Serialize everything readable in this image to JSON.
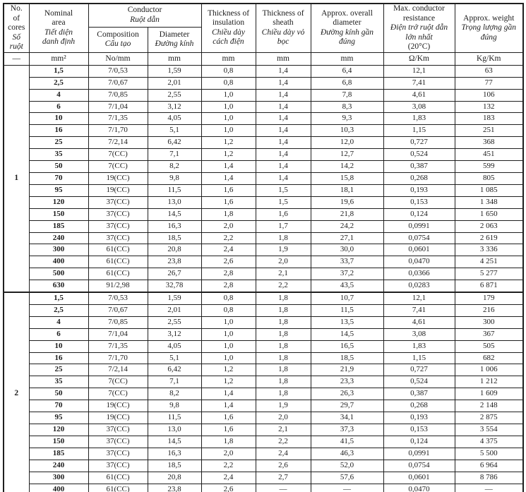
{
  "colors": {
    "border": "#1f1f1f",
    "text": "#1c1c1c",
    "background": "#ffffff"
  },
  "table": {
    "header": {
      "cores": {
        "en": "No.\nof\ncores",
        "vi": "Số\nruột"
      },
      "nominal_area": {
        "en": "Nominal\narea",
        "vi": "Tiết diện\ndanh định"
      },
      "conductor": {
        "en": "Conductor",
        "vi": "Ruột dẫn"
      },
      "composition": {
        "en": "Composition",
        "vi": "Cấu tạo"
      },
      "diameter": {
        "en": "Diameter",
        "vi": "Đường kính"
      },
      "insulation": {
        "en": "Thickness of\ninsulation",
        "vi": "Chiều dày\ncách điện"
      },
      "sheath": {
        "en": "Thickness of\nsheath",
        "vi": "Chiều dày vỏ\nbọc"
      },
      "overall_diameter": {
        "en": "Approx. overall\ndiameter",
        "vi": "Đường kính gần\nđúng"
      },
      "resistance": {
        "en": "Max. conductor\nresistance",
        "vi": "Điện trở ruột dẫn\nlớn nhất",
        "note": "(20°C)"
      },
      "weight": {
        "en": "Approx. weight",
        "vi": "Trọng lượng gần\nđúng"
      }
    },
    "units": [
      "—",
      "mm²",
      "No/mm",
      "mm",
      "mm",
      "mm",
      "mm",
      "Ω/Km",
      "Kg/Km"
    ],
    "sections": [
      {
        "cores": "1",
        "rows": [
          [
            "1,5",
            "7/0,53",
            "1,59",
            "0,8",
            "1,4",
            "6,4",
            "12,1",
            "63"
          ],
          [
            "2,5",
            "7/0,67",
            "2,01",
            "0,8",
            "1,4",
            "6,8",
            "7,41",
            "77"
          ],
          [
            "4",
            "7/0,85",
            "2,55",
            "1,0",
            "1,4",
            "7,8",
            "4,61",
            "106"
          ],
          [
            "6",
            "7/1,04",
            "3,12",
            "1,0",
            "1,4",
            "8,3",
            "3,08",
            "132"
          ],
          [
            "10",
            "7/1,35",
            "4,05",
            "1,0",
            "1,4",
            "9,3",
            "1,83",
            "183"
          ],
          [
            "16",
            "7/1,70",
            "5,1",
            "1,0",
            "1,4",
            "10,3",
            "1,15",
            "251"
          ],
          [
            "25",
            "7/2,14",
            "6,42",
            "1,2",
            "1,4",
            "12,0",
            "0,727",
            "368"
          ],
          [
            "35",
            "7(CC)",
            "7,1",
            "1,2",
            "1,4",
            "12,7",
            "0,524",
            "451"
          ],
          [
            "50",
            "7(CC)",
            "8,2",
            "1,4",
            "1,4",
            "14,2",
            "0,387",
            "599"
          ],
          [
            "70",
            "19(CC)",
            "9,8",
            "1,4",
            "1,4",
            "15,8",
            "0,268",
            "805"
          ],
          [
            "95",
            "19(CC)",
            "11,5",
            "1,6",
            "1,5",
            "18,1",
            "0,193",
            "1 085"
          ],
          [
            "120",
            "37(CC)",
            "13,0",
            "1,6",
            "1,5",
            "19,6",
            "0,153",
            "1 348"
          ],
          [
            "150",
            "37(CC)",
            "14,5",
            "1,8",
            "1,6",
            "21,8",
            "0,124",
            "1 650"
          ],
          [
            "185",
            "37(CC)",
            "16,3",
            "2,0",
            "1,7",
            "24,2",
            "0,0991",
            "2 063"
          ],
          [
            "240",
            "37(CC)",
            "18,5",
            "2,2",
            "1,8",
            "27,1",
            "0,0754",
            "2 619"
          ],
          [
            "300",
            "61(CC)",
            "20,8",
            "2,4",
            "1,9",
            "30,0",
            "0,0601",
            "3 336"
          ],
          [
            "400",
            "61(CC)",
            "23,8",
            "2,6",
            "2,0",
            "33,7",
            "0,0470",
            "4 251"
          ],
          [
            "500",
            "61(CC)",
            "26,7",
            "2,8",
            "2,1",
            "37,2",
            "0,0366",
            "5 277"
          ],
          [
            "630",
            "91/2,98",
            "32,78",
            "2,8",
            "2,2",
            "43,5",
            "0,0283",
            "6 871"
          ]
        ]
      },
      {
        "cores": "2",
        "rows": [
          [
            "1,5",
            "7/0,53",
            "1,59",
            "0,8",
            "1,8",
            "10,7",
            "12,1",
            "179"
          ],
          [
            "2,5",
            "7/0,67",
            "2,01",
            "0,8",
            "1,8",
            "11,5",
            "7,41",
            "216"
          ],
          [
            "4",
            "7/0,85",
            "2,55",
            "1,0",
            "1,8",
            "13,5",
            "4,61",
            "300"
          ],
          [
            "6",
            "7/1,04",
            "3,12",
            "1,0",
            "1,8",
            "14,5",
            "3,08",
            "367"
          ],
          [
            "10",
            "7/1,35",
            "4,05",
            "1,0",
            "1,8",
            "16,5",
            "1,83",
            "505"
          ],
          [
            "16",
            "7/1,70",
            "5,1",
            "1,0",
            "1,8",
            "18,5",
            "1,15",
            "682"
          ],
          [
            "25",
            "7/2,14",
            "6,42",
            "1,2",
            "1,8",
            "21,9",
            "0,727",
            "1 006"
          ],
          [
            "35",
            "7(CC)",
            "7,1",
            "1,2",
            "1,8",
            "23,3",
            "0,524",
            "1 212"
          ],
          [
            "50",
            "7(CC)",
            "8,2",
            "1,4",
            "1,8",
            "26,3",
            "0,387",
            "1 609"
          ],
          [
            "70",
            "19(CC)",
            "9,8",
            "1,4",
            "1,9",
            "29,7",
            "0,268",
            "2 148"
          ],
          [
            "95",
            "19(CC)",
            "11,5",
            "1,6",
            "2,0",
            "34,1",
            "0,193",
            "2 875"
          ],
          [
            "120",
            "37(CC)",
            "13,0",
            "1,6",
            "2,1",
            "37,3",
            "0,153",
            "3 554"
          ],
          [
            "150",
            "37(CC)",
            "14,5",
            "1,8",
            "2,2",
            "41,5",
            "0,124",
            "4 375"
          ],
          [
            "185",
            "37(CC)",
            "16,3",
            "2,0",
            "2,4",
            "46,3",
            "0,0991",
            "5 500"
          ],
          [
            "240",
            "37(CC)",
            "18,5",
            "2,2",
            "2,6",
            "52,0",
            "0,0754",
            "6 964"
          ],
          [
            "300",
            "61(CC)",
            "20,8",
            "2,4",
            "2,7",
            "57,6",
            "0,0601",
            "8 786"
          ],
          [
            "400",
            "61(CC)",
            "23,8",
            "2,6",
            "—",
            "—",
            "0,0470",
            "—"
          ]
        ]
      }
    ]
  }
}
